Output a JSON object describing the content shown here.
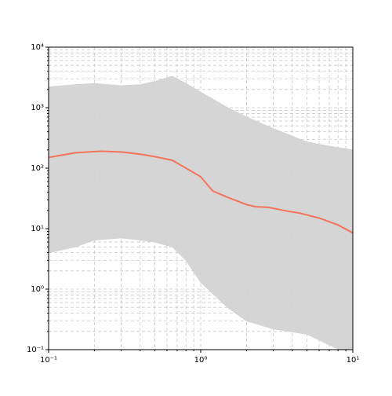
{
  "chart_data": {
    "type": "line",
    "xlog": true,
    "ylog": true,
    "grid": true,
    "xlim": [
      0.1,
      10
    ],
    "ylim": [
      0.1,
      10000
    ],
    "xticks": [
      {
        "value": 0.1,
        "label": "10⁻¹"
      },
      {
        "value": 1,
        "label": "10⁰"
      },
      {
        "value": 10,
        "label": "10¹"
      }
    ],
    "yticks": [
      {
        "value": 0.1,
        "label": "10⁻¹"
      },
      {
        "value": 1,
        "label": "10⁰"
      },
      {
        "value": 10,
        "label": "10¹"
      },
      {
        "value": 100,
        "label": "10²"
      },
      {
        "value": 1000,
        "label": "10³"
      },
      {
        "value": 10000,
        "label": "10⁴"
      }
    ],
    "xminorticks": [
      0.2,
      0.3,
      0.4,
      0.5,
      0.6,
      0.7,
      0.8,
      0.9,
      2,
      3,
      4,
      5,
      6,
      7,
      8,
      9
    ],
    "yminorticks": [
      0.2,
      0.3,
      0.4,
      0.5,
      0.6,
      0.7,
      0.8,
      0.9,
      2,
      3,
      4,
      5,
      6,
      7,
      8,
      9,
      20,
      30,
      40,
      50,
      60,
      70,
      80,
      90,
      200,
      300,
      400,
      500,
      600,
      700,
      800,
      900,
      2000,
      3000,
      4000,
      5000,
      6000,
      7000,
      8000,
      9000
    ],
    "band": {
      "color": "#d3d3d3",
      "x": [
        0.1,
        0.15,
        0.2,
        0.3,
        0.4,
        0.5,
        0.65,
        0.8,
        1,
        1.5,
        2,
        3,
        5,
        7,
        10
      ],
      "upper": [
        2200,
        2400,
        2500,
        2300,
        2400,
        2700,
        3300,
        2500,
        1800,
        1000,
        700,
        450,
        270,
        230,
        200
      ],
      "lower": [
        4,
        5,
        6.5,
        7,
        6.5,
        6,
        5,
        3,
        1.3,
        0.5,
        0.3,
        0.22,
        0.18,
        0.12,
        0.08
      ]
    },
    "series": [
      {
        "color": "#f4735b",
        "x": [
          0.1,
          0.15,
          0.22,
          0.3,
          0.4,
          0.5,
          0.65,
          0.8,
          1,
          1.2,
          1.5,
          2,
          2.3,
          2.8,
          3.5,
          4.5,
          6,
          8,
          10
        ],
        "values": [
          150,
          180,
          190,
          185,
          170,
          155,
          135,
          100,
          72,
          42,
          33,
          25,
          23,
          22.5,
          20,
          18,
          15,
          11.5,
          8.5
        ]
      }
    ]
  }
}
